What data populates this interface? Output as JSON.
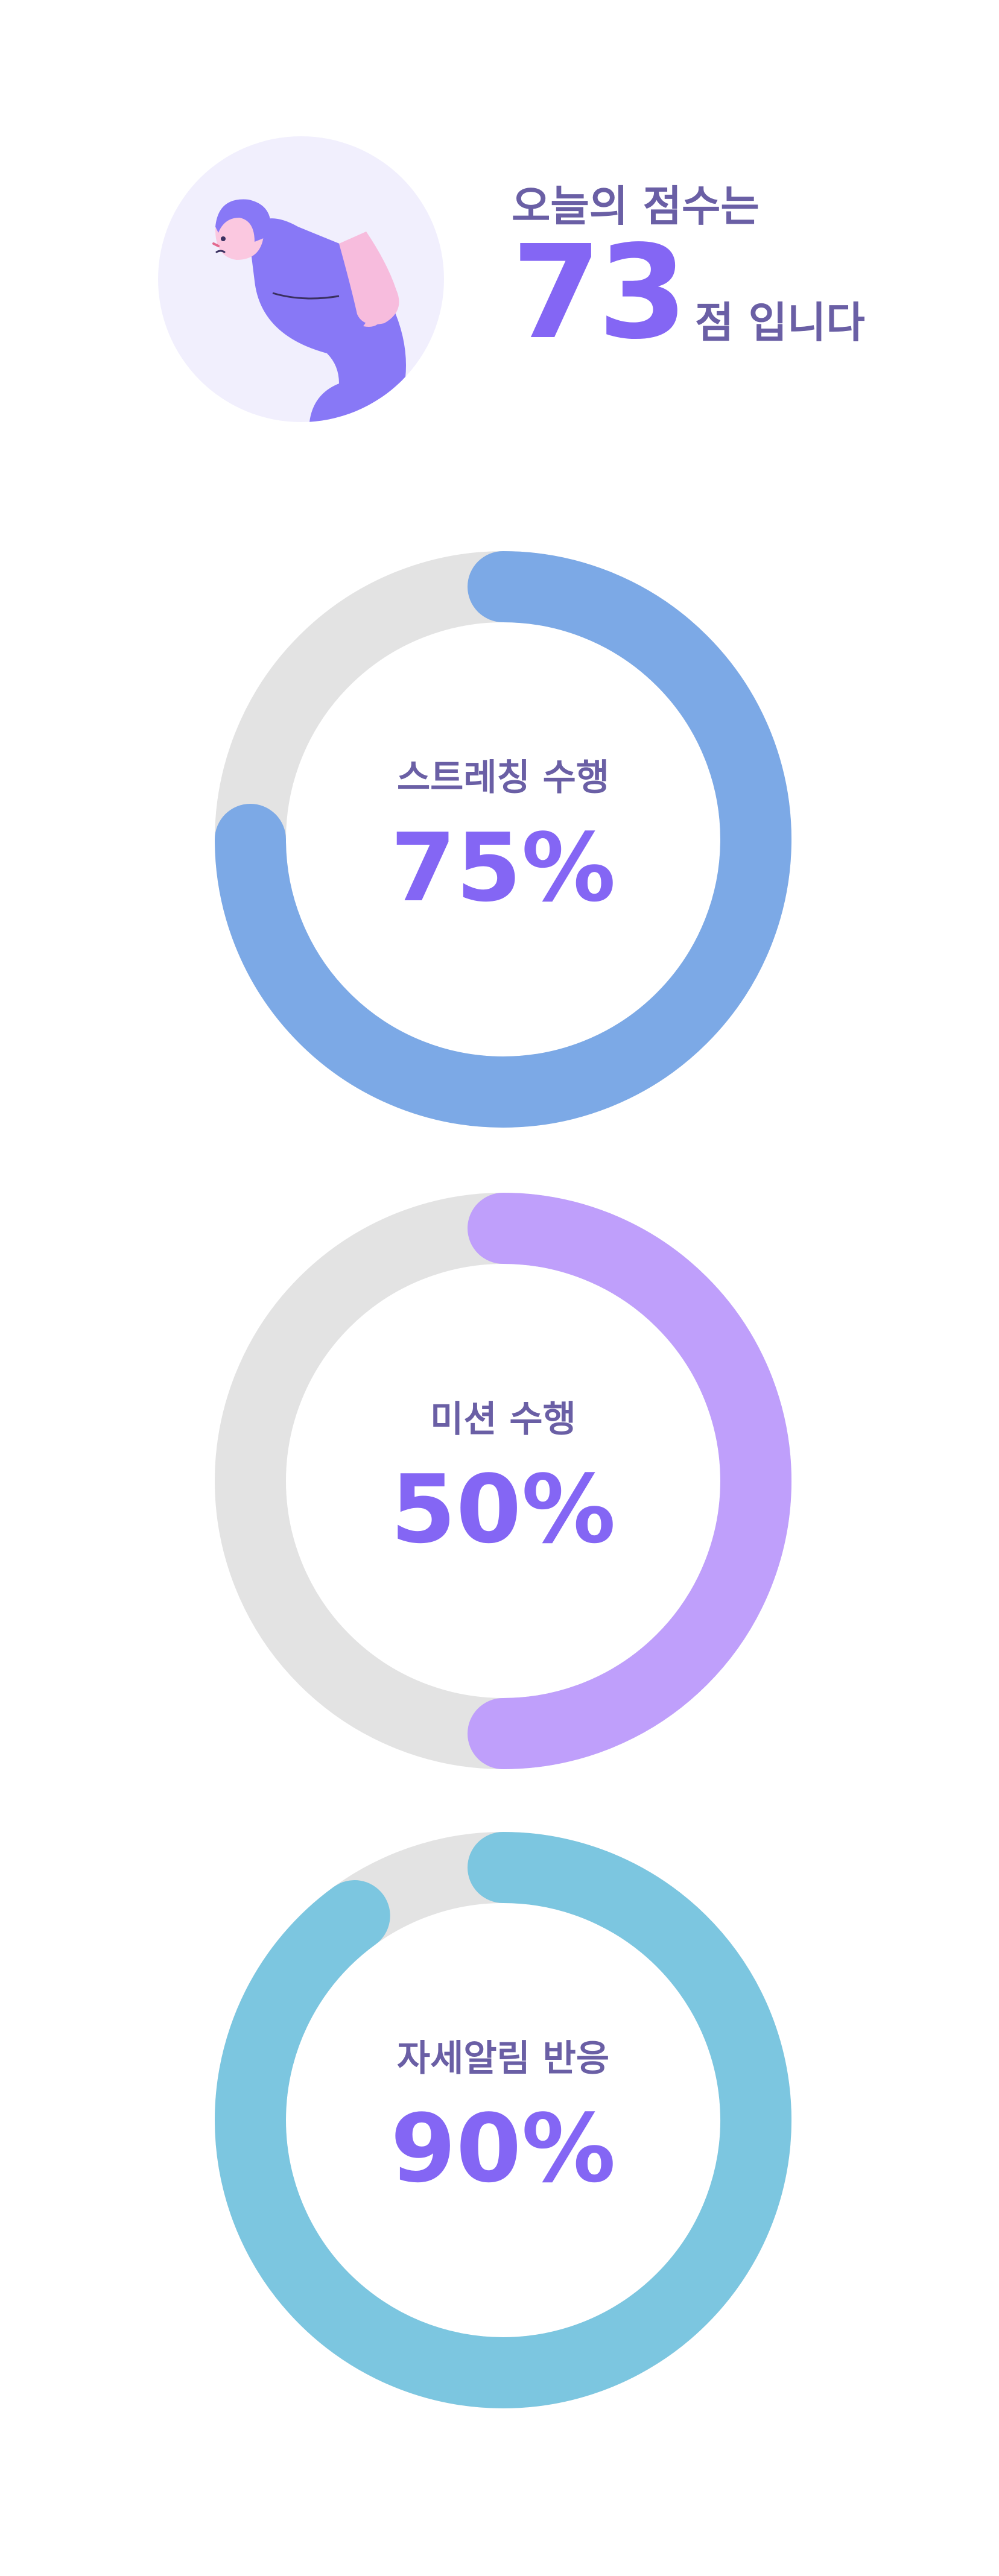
{
  "header": {
    "caption": "오늘의 점수는",
    "score": "73",
    "score_suffix": "점 입니다"
  },
  "metrics": [
    {
      "label": "스트레칭 수행",
      "percent_text": "75%",
      "value": 75,
      "color": "#7ca9e6"
    },
    {
      "label": "미션 수행",
      "percent_text": "50%",
      "value": 50,
      "color": "#bf9ffb"
    },
    {
      "label": "자세알림 반응",
      "percent_text": "90%",
      "value": 90,
      "color": "#7cc6e0"
    }
  ],
  "colors": {
    "track": "#e3e3e3",
    "accent": "#8466f4",
    "text": "#6a5fa5",
    "avatar_bg": "#f1effd"
  }
}
